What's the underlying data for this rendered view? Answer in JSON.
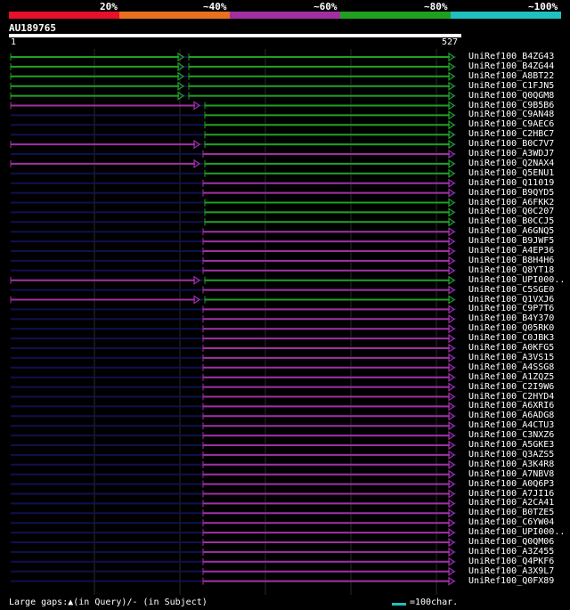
{
  "header": {
    "scale_labels": [
      "20%",
      "~40%",
      "~60%",
      "~80%",
      "~100%"
    ],
    "scale_colors": [
      "#e8102a",
      "#e87020",
      "#a030a0",
      "#20a020",
      "#20c0c0"
    ],
    "query_id": "AU189765",
    "ruler_start": "1",
    "ruler_end": "527"
  },
  "hits": [
    {
      "name": "UniRef100_B4ZG43",
      "color": "green"
    },
    {
      "name": "UniRef100_B4ZG44",
      "color": "green"
    },
    {
      "name": "UniRef100_A8BT22",
      "color": "green"
    },
    {
      "name": "UniRef100_C1FJN5",
      "color": "green"
    },
    {
      "name": "UniRef100_Q0QGM8",
      "color": "green"
    },
    {
      "name": "UniRef100_C9B5B6",
      "color": "mixed"
    },
    {
      "name": "UniRef100_C9AN48",
      "color": "green"
    },
    {
      "name": "UniRef100_C9AEC6",
      "color": "green"
    },
    {
      "name": "UniRef100_C2HBC7",
      "color": "green"
    },
    {
      "name": "UniRef100_B0C7V7",
      "color": "mixed"
    },
    {
      "name": "UniRef100_A3WDJ7",
      "color": "purple"
    },
    {
      "name": "UniRef100_Q2NAX4",
      "color": "mixed"
    },
    {
      "name": "UniRef100_Q5ENU1",
      "color": "green"
    },
    {
      "name": "UniRef100_Q11019",
      "color": "purple"
    },
    {
      "name": "UniRef100_B9QYD5",
      "color": "purple"
    },
    {
      "name": "UniRef100_A6FKK2",
      "color": "green"
    },
    {
      "name": "UniRef100_Q0C207",
      "color": "green"
    },
    {
      "name": "UniRef100_B0CCJ5",
      "color": "green"
    },
    {
      "name": "UniRef100_A6GNQ5",
      "color": "purple"
    },
    {
      "name": "UniRef100_B9JWF5",
      "color": "purple"
    },
    {
      "name": "UniRef100_A4EP36",
      "color": "purple"
    },
    {
      "name": "UniRef100_B8H4H6",
      "color": "purple"
    },
    {
      "name": "UniRef100_Q8YT18",
      "color": "purple"
    },
    {
      "name": "UniRef100_UPI000..",
      "color": "mixed"
    },
    {
      "name": "UniRef100_C5SGE0",
      "color": "purple"
    },
    {
      "name": "UniRef100_Q1VXJ6",
      "color": "mixed"
    },
    {
      "name": "UniRef100_C9P7T6",
      "color": "purple"
    },
    {
      "name": "UniRef100_B4Y370",
      "color": "purple"
    },
    {
      "name": "UniRef100_Q05RK0",
      "color": "purple"
    },
    {
      "name": "UniRef100_C0JBK3",
      "color": "purple"
    },
    {
      "name": "UniRef100_A0KFG5",
      "color": "purple"
    },
    {
      "name": "UniRef100_A3VS15",
      "color": "purple"
    },
    {
      "name": "UniRef100_A4SSG8",
      "color": "purple"
    },
    {
      "name": "UniRef100_A1ZQZ5",
      "color": "purple"
    },
    {
      "name": "UniRef100_C2I9W6",
      "color": "purple"
    },
    {
      "name": "UniRef100_C2HYD4",
      "color": "purple"
    },
    {
      "name": "UniRef100_A6XRI6",
      "color": "purple"
    },
    {
      "name": "UniRef100_A6ADG8",
      "color": "purple"
    },
    {
      "name": "UniRef100_A4CTU3",
      "color": "purple"
    },
    {
      "name": "UniRef100_C3NXZ6",
      "color": "purple"
    },
    {
      "name": "UniRef100_A5GKE3",
      "color": "purple"
    },
    {
      "name": "UniRef100_Q3AZS5",
      "color": "purple"
    },
    {
      "name": "UniRef100_A3K4R8",
      "color": "purple"
    },
    {
      "name": "UniRef100_A7NBV8",
      "color": "purple"
    },
    {
      "name": "UniRef100_A0Q6P3",
      "color": "purple"
    },
    {
      "name": "UniRef100_A7JI16",
      "color": "purple"
    },
    {
      "name": "UniRef100_A2CA41",
      "color": "purple"
    },
    {
      "name": "UniRef100_B0TZE5",
      "color": "purple"
    },
    {
      "name": "UniRef100_C6YW04",
      "color": "purple"
    },
    {
      "name": "UniRef100_UPI000..",
      "color": "purple"
    },
    {
      "name": "UniRef100_Q0QM06",
      "color": "purple"
    },
    {
      "name": "UniRef100_A3Z455",
      "color": "purple"
    },
    {
      "name": "UniRef100_Q4PKF6",
      "color": "purple"
    },
    {
      "name": "UniRef100_A3X9L7",
      "color": "purple"
    },
    {
      "name": "UniRef100_Q0FX89",
      "color": "purple"
    }
  ],
  "legend": {
    "gaps_text": "Large gaps:▲(in Query)/- (in Subject)",
    "scale_text": "=100char."
  }
}
